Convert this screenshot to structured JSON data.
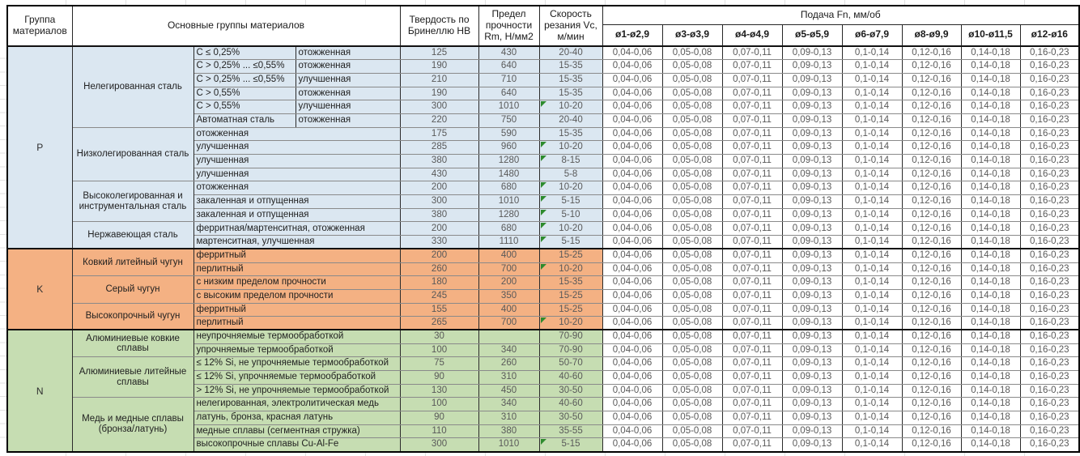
{
  "header": {
    "col_group": "Группа материалов",
    "col_main": "Основные группы материалов",
    "col_hb": "Твердость по Бринеллю HB",
    "col_rm": "Предел прочности Rm, Н/мм2",
    "col_vc": "Скорость резания Vc, м/мин",
    "feed_title": "Подача Fn, мм/об",
    "diameters": [
      "ø1-ø2,9",
      "ø3-ø3,9",
      "ø4-ø4,9",
      "ø5-ø5,9",
      "ø6-ø7,9",
      "ø8-ø9,9",
      "ø10-ø11,5",
      "ø12-ø16"
    ]
  },
  "feed_values": [
    "0,04-0,06",
    "0,05-0,08",
    "0,07-0,11",
    "0,09-0,13",
    "0,1-0,14",
    "0,12-0,16",
    "0,14-0,18",
    "0,16-0,23"
  ],
  "colors": {
    "p_blue": "#dbe7f1",
    "k_orange": "#f4b183",
    "n_green": "#c6ddb2",
    "flag_green": "#2e8b2e",
    "number_text": "#595959"
  },
  "groups": [
    {
      "letter": "P",
      "color": "#dbe7f1",
      "subgroups": [
        {
          "name": "Нелегированная сталь",
          "rows": [
            {
              "c1": "C ≤ 0,25%",
              "c2": "отожженная",
              "hb": "125",
              "rm": "430",
              "vc": "20-40",
              "flag": false
            },
            {
              "c1": "C > 0,25% ... ≤0,55%",
              "c2": "отожженная",
              "hb": "190",
              "rm": "640",
              "vc": "15-35",
              "flag": false
            },
            {
              "c1": "C > 0,25% ... ≤0,55%",
              "c2": "улучшенная",
              "hb": "210",
              "rm": "710",
              "vc": "15-35",
              "flag": false
            },
            {
              "c1": "C > 0,55%",
              "c2": "отожженная",
              "hb": "190",
              "rm": "640",
              "vc": "15-35",
              "flag": false
            },
            {
              "c1": "C > 0,55%",
              "c2": "улучшенная",
              "hb": "300",
              "rm": "1010",
              "vc": "10-20",
              "flag": true
            },
            {
              "c1": "Автоматная сталь",
              "c2": "отожженная",
              "hb": "220",
              "rm": "750",
              "vc": "20-40",
              "flag": false
            }
          ]
        },
        {
          "name": "Низколегированная сталь",
          "rows": [
            {
              "c1": "отожженная",
              "c2": null,
              "hb": "175",
              "rm": "590",
              "vc": "15-35",
              "flag": false
            },
            {
              "c1": "улучшенная",
              "c2": null,
              "hb": "285",
              "rm": "960",
              "vc": "10-20",
              "flag": true
            },
            {
              "c1": "улучшенная",
              "c2": null,
              "hb": "380",
              "rm": "1280",
              "vc": "8-15",
              "flag": true
            },
            {
              "c1": "улучшенная",
              "c2": null,
              "hb": "430",
              "rm": "1480",
              "vc": "5-8",
              "flag": false
            }
          ]
        },
        {
          "name": "Высоколегированная и инструментальная сталь",
          "rows": [
            {
              "c1": "отожженная",
              "c2": null,
              "hb": "200",
              "rm": "680",
              "vc": "10-20",
              "flag": true
            },
            {
              "c1": "закаленная и отпущенная",
              "c2": null,
              "hb": "300",
              "rm": "1010",
              "vc": "5-15",
              "flag": true
            },
            {
              "c1": "закаленная и отпущенная",
              "c2": null,
              "hb": "380",
              "rm": "1280",
              "vc": "5-10",
              "flag": true
            }
          ]
        },
        {
          "name": "Нержавеющая сталь",
          "rows": [
            {
              "c1": "ферритная/мартенситная, отожженная",
              "c2": null,
              "hb": "200",
              "rm": "680",
              "vc": "10-20",
              "flag": true
            },
            {
              "c1": "мартенситная, улучшенная",
              "c2": null,
              "hb": "330",
              "rm": "1110",
              "vc": "5-15",
              "flag": true
            }
          ]
        }
      ]
    },
    {
      "letter": "K",
      "color": "#f4b183",
      "subgroups": [
        {
          "name": "Ковкий литейный чугун",
          "rows": [
            {
              "c1": "ферритный",
              "c2": null,
              "hb": "200",
              "rm": "400",
              "vc": "15-25",
              "flag": false
            },
            {
              "c1": "перлитный",
              "c2": null,
              "hb": "260",
              "rm": "700",
              "vc": "10-20",
              "flag": true
            }
          ]
        },
        {
          "name": "Серый чугун",
          "rows": [
            {
              "c1": "с низким пределом прочности",
              "c2": null,
              "hb": "180",
              "rm": "200",
              "vc": "15-35",
              "flag": false
            },
            {
              "c1": "с высоким пределом прочности",
              "c2": null,
              "hb": "245",
              "rm": "350",
              "vc": "15-25",
              "flag": false
            }
          ]
        },
        {
          "name": "Высокопрочный чугун",
          "rows": [
            {
              "c1": "ферритный",
              "c2": null,
              "hb": "155",
              "rm": "400",
              "vc": "15-25",
              "flag": false
            },
            {
              "c1": "перлитный",
              "c2": null,
              "hb": "265",
              "rm": "700",
              "vc": "10-20",
              "flag": true
            }
          ]
        }
      ]
    },
    {
      "letter": "N",
      "color": "#c6ddb2",
      "subgroups": [
        {
          "name": "Алюминиевые ковкие сплавы",
          "rows": [
            {
              "c1": "неупрочняемые термообработкой",
              "c2": null,
              "hb": "30",
              "rm": "",
              "vc": "70-90",
              "flag": false
            },
            {
              "c1": "упрочняемые термообработкой",
              "c2": null,
              "hb": "100",
              "rm": "340",
              "vc": "70-90",
              "flag": false
            }
          ]
        },
        {
          "name": "Алюминиевые литейные сплавы",
          "rows": [
            {
              "c1": "≤ 12% Si, не упрочняемые термообработкой",
              "c2": null,
              "hb": "75",
              "rm": "260",
              "vc": "50-70",
              "flag": false
            },
            {
              "c1": "≤ 12% Si, упрочняемые термообработкой",
              "c2": null,
              "hb": "90",
              "rm": "310",
              "vc": "40-60",
              "flag": false
            },
            {
              "c1": "> 12% Si, не упрочняемые термообработкой",
              "c2": null,
              "hb": "130",
              "rm": "450",
              "vc": "30-50",
              "flag": false
            }
          ]
        },
        {
          "name": "Медь и медные сплавы (бронза/латунь)",
          "rows": [
            {
              "c1": "нелегированная, электролитическая медь",
              "c2": null,
              "hb": "100",
              "rm": "340",
              "vc": "40-60",
              "flag": false
            },
            {
              "c1": "латунь, бронза, красная латунь",
              "c2": null,
              "hb": "90",
              "rm": "310",
              "vc": "30-50",
              "flag": false
            },
            {
              "c1": "медные сплавы (сегментная стружка)",
              "c2": null,
              "hb": "110",
              "rm": "380",
              "vc": "35-55",
              "flag": false
            },
            {
              "c1": "высокопрочные сплавы Cu-Al-Fe",
              "c2": null,
              "hb": "300",
              "rm": "1010",
              "vc": "5-15",
              "flag": true
            }
          ]
        }
      ]
    }
  ]
}
